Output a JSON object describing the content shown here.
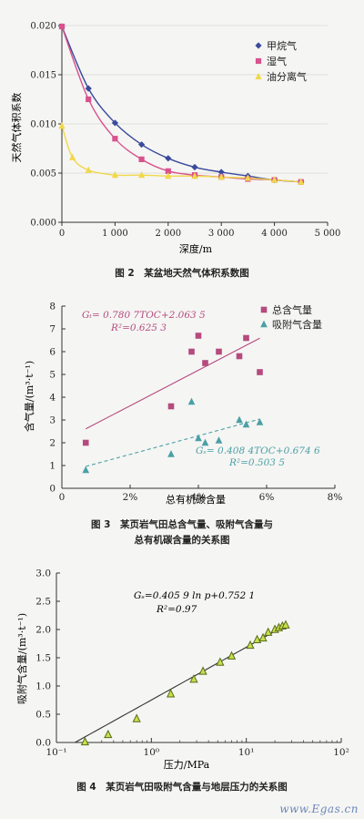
{
  "figures": [
    {
      "caption": "图 2　某盆地天然气体积系数图",
      "ylabel": "天然气体积系数",
      "xlabel": "深度/m"
    },
    {
      "caption_line1": "图 3　某页岩气田总含气量、吸附气含量与",
      "caption_line2": "总有机碳含量的关系图",
      "ylabel": "含气量/(m³·t⁻¹)",
      "xlabel": "总有机碳含量",
      "eq_total_line1": "Gₜ= 0.780 7TOC+2.063 5",
      "eq_total_line2": "R²=0.625 3",
      "eq_ads_line1": "Gₛ= 0.408 4TOC+0.674 6",
      "eq_ads_line2": "R²=0.503 5"
    },
    {
      "caption": "图 4　某页岩气田吸附气含量与地层压力的关系图",
      "ylabel": "吸附气含量/(m³·t⁻¹)",
      "xlabel": "压力/MPa",
      "eq_line1": "Gₛ=0.405 9 ln p+0.752 1",
      "eq_line2": "R²=0.97"
    }
  ],
  "watermark": "www.Egas.cn",
  "chart_data": [
    {
      "type": "line",
      "xlim": [
        0,
        5000
      ],
      "ylim": [
        0,
        0.02
      ],
      "x_ticks": [
        0,
        1000,
        2000,
        3000,
        4000,
        5000
      ],
      "x_tick_labels": [
        "0",
        "1 000",
        "2 000",
        "3 000",
        "4 000",
        "5 000"
      ],
      "y_ticks": [
        0,
        0.005,
        0.01,
        0.015,
        0.02
      ],
      "y_tick_labels": [
        "0.000",
        "0.005",
        "0.010",
        "0.015",
        "0.020"
      ],
      "legend_position": "top-right",
      "series": [
        {
          "name": "甲烷气",
          "color": "#3a4a9c",
          "marker": "diamond",
          "x": [
            0,
            500,
            1000,
            1500,
            2000,
            2500,
            3000,
            3500,
            4000,
            4500
          ],
          "y": [
            0.0199,
            0.0136,
            0.0101,
            0.0079,
            0.0065,
            0.0056,
            0.0051,
            0.0047,
            0.0043,
            0.0041
          ]
        },
        {
          "name": "湿气",
          "color": "#d8528d",
          "marker": "square",
          "x": [
            0,
            500,
            1000,
            1500,
            2000,
            2500,
            3000,
            3500,
            4000,
            4500
          ],
          "y": [
            0.0199,
            0.0125,
            0.0085,
            0.0064,
            0.0052,
            0.0048,
            0.0046,
            0.0044,
            0.0043,
            0.0041
          ]
        },
        {
          "name": "油分离气",
          "color": "#f0d84a",
          "marker": "triangle",
          "x": [
            0,
            200,
            500,
            1000,
            1500,
            2000,
            2500,
            3000,
            3500,
            4000,
            4500
          ],
          "y": [
            0.0098,
            0.0066,
            0.0053,
            0.0048,
            0.0048,
            0.0047,
            0.0047,
            0.0046,
            0.0045,
            0.0043,
            0.0041
          ]
        }
      ]
    },
    {
      "type": "scatter",
      "xlim": [
        0,
        8
      ],
      "ylim": [
        0,
        8
      ],
      "x_ticks": [
        0,
        2,
        4,
        6,
        8
      ],
      "x_tick_labels": [
        "0",
        "2%",
        "4%",
        "6%",
        "8%"
      ],
      "y_ticks": [
        0,
        1,
        2,
        3,
        4,
        5,
        6,
        7,
        8
      ],
      "y_tick_labels": [
        "0",
        "1",
        "2",
        "3",
        "4",
        "5",
        "6",
        "7",
        "8"
      ],
      "legend_position": "top-right",
      "series": [
        {
          "name": "总含气量",
          "color": "#b54a7e",
          "marker": "square",
          "x": [
            0.7,
            3.2,
            3.8,
            4.0,
            4.2,
            4.6,
            5.2,
            5.4,
            5.8
          ],
          "y": [
            2.0,
            3.6,
            6.0,
            6.7,
            5.5,
            6.0,
            5.8,
            6.6,
            5.1
          ],
          "trend": [
            [
              0.7,
              2.61
            ],
            [
              5.8,
              6.59
            ]
          ]
        },
        {
          "name": "吸附气含量",
          "color": "#4aa0a6",
          "marker": "triangle",
          "x": [
            0.7,
            3.2,
            3.8,
            4.0,
            4.2,
            4.6,
            5.2,
            5.4,
            5.8
          ],
          "y": [
            0.8,
            1.5,
            3.8,
            2.2,
            2.0,
            2.1,
            3.0,
            2.8,
            2.9
          ],
          "trend": [
            [
              0.7,
              0.96
            ],
            [
              5.8,
              3.04
            ]
          ]
        }
      ]
    },
    {
      "type": "scatter",
      "x_scale": "log",
      "xlim": [
        0.1,
        100
      ],
      "ylim": [
        0,
        3.0
      ],
      "x_ticks": [
        0.1,
        1,
        10,
        100
      ],
      "x_tick_labels": [
        "10⁻¹",
        "10⁰",
        "10¹",
        "10²"
      ],
      "y_ticks": [
        0,
        0.5,
        1.0,
        1.5,
        2.0,
        2.5,
        3.0
      ],
      "y_tick_labels": [
        "0.0",
        "0.5",
        "1.0",
        "1.5",
        "2.0",
        "2.5",
        "3.0"
      ],
      "series": [
        {
          "name": "",
          "color": "#c8e04a",
          "marker": "triangle",
          "x": [
            0.2,
            0.35,
            0.7,
            1.6,
            2.8,
            3.5,
            5.3,
            7,
            11,
            13,
            15,
            17,
            20,
            22,
            24,
            26
          ],
          "y": [
            0.01,
            0.14,
            0.42,
            0.86,
            1.12,
            1.26,
            1.42,
            1.53,
            1.72,
            1.82,
            1.85,
            1.95,
            2.0,
            2.03,
            2.06,
            2.08
          ],
          "fit": {
            "a": 0.4059,
            "b": 0.7521,
            "x_from": 0.157,
            "x_to": 26
          }
        }
      ]
    }
  ]
}
